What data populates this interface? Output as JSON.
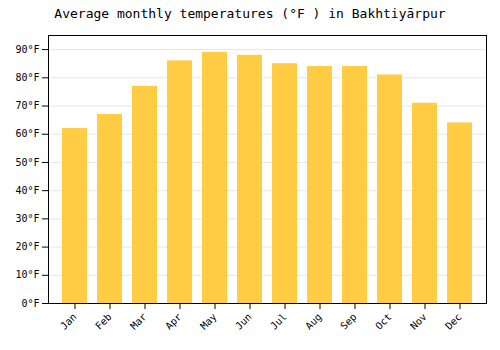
{
  "chart_data": {
    "type": "bar",
    "title": "Average monthly temperatures (°F ) in Bakhtiyārpur",
    "categories": [
      "Jan",
      "Feb",
      "Mar",
      "Apr",
      "May",
      "Jun",
      "Jul",
      "Aug",
      "Sep",
      "Oct",
      "Nov",
      "Dec"
    ],
    "values": [
      62,
      67,
      77,
      86,
      89,
      88,
      85,
      84,
      84,
      81,
      71,
      64
    ],
    "color": "#FFCC44",
    "ylim": [
      0,
      95
    ],
    "yticks": [
      {
        "value": 0,
        "label": "0°F"
      },
      {
        "value": 10,
        "label": "10°F"
      },
      {
        "value": 20,
        "label": "20°F"
      },
      {
        "value": 30,
        "label": "30°F"
      },
      {
        "value": 40,
        "label": "40°F"
      },
      {
        "value": 50,
        "label": "50°F"
      },
      {
        "value": 60,
        "label": "60°F"
      },
      {
        "value": 70,
        "label": "70°F"
      },
      {
        "value": 80,
        "label": "80°F"
      },
      {
        "value": 90,
        "label": "90°F"
      }
    ],
    "grid": true
  }
}
